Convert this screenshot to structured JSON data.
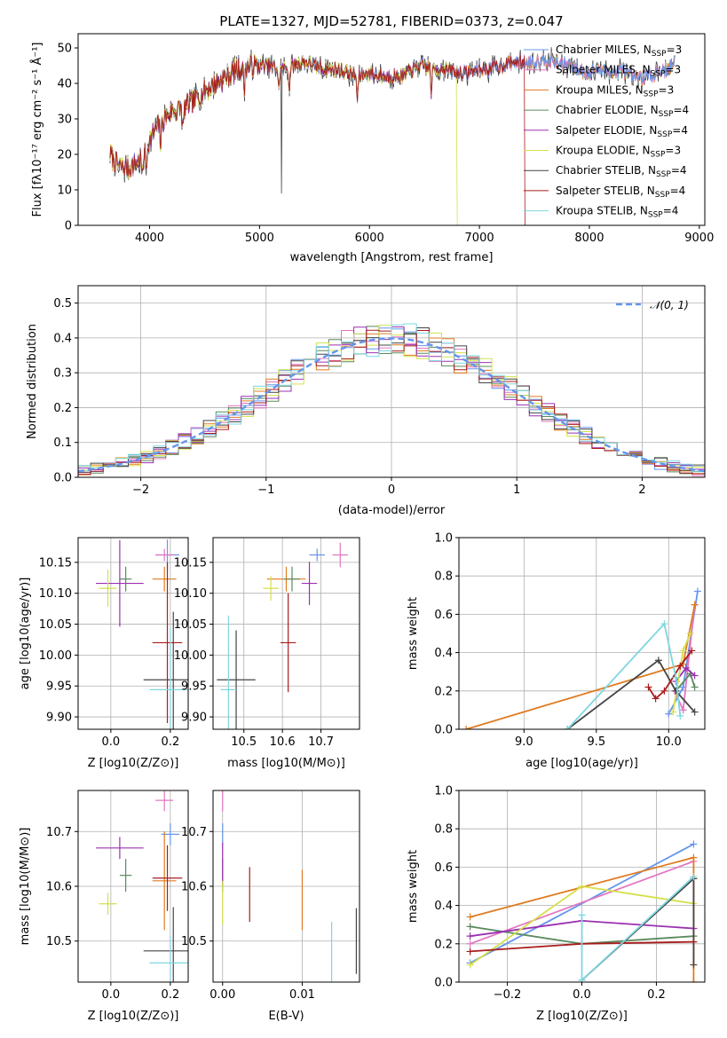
{
  "title": "PLATE=1327, MJD=52781, FIBERID=0373, z=0.047",
  "colors": {
    "Chabrier MILES": "#6495ed",
    "Salpeter MILES": "#e377c2",
    "Kroupa MILES": "#e07b20",
    "Chabrier ELODIE": "#5a8a5e",
    "Salpeter ELODIE": "#9a30b0",
    "Kroupa ELODIE": "#d4e04a",
    "Chabrier STELIB": "#444444",
    "Salpeter STELIB": "#a81c1c",
    "Kroupa STELIB": "#7fd6e0"
  },
  "chart_data": [
    {
      "id": "spectrum",
      "type": "line",
      "title": "PLATE=1327, MJD=52781, FIBERID=0373, z=0.047",
      "xlabel": "wavelength [Angstrom, rest frame]",
      "ylabel": "Flux [fλ10⁻¹⁷ erg cm⁻² s⁻¹ Å⁻¹]",
      "xlim": [
        3350,
        9050
      ],
      "ylim": [
        0,
        54
      ],
      "xticks": [
        4000,
        5000,
        6000,
        7000,
        8000,
        9000
      ],
      "yticks": [
        0,
        10,
        20,
        30,
        40,
        50
      ],
      "legend_loc": "right",
      "continuum": {
        "x": [
          3640,
          3700,
          3800,
          3900,
          4000,
          4100,
          4200,
          4300,
          4400,
          4500,
          4600,
          4700,
          4800,
          4900,
          5000,
          5100,
          5200,
          5300,
          5400,
          5500,
          5600,
          5700,
          5800,
          5900,
          6000,
          6100,
          6200,
          6300,
          6400,
          6500,
          6600,
          6700,
          6800,
          6900,
          7000,
          7100,
          7200,
          7300,
          7400,
          7500,
          7600,
          7700,
          7800,
          7900,
          8000,
          8100,
          8200,
          8300,
          8400,
          8500,
          8600,
          8700,
          8780
        ],
        "y": [
          20,
          17,
          16,
          18,
          24,
          29,
          32,
          33,
          35,
          38,
          40,
          42,
          44,
          45,
          45,
          45,
          44,
          45,
          46,
          45,
          44,
          44,
          43,
          42,
          43,
          42,
          42,
          42,
          44,
          45,
          44,
          44,
          43,
          43,
          44,
          44,
          45,
          46,
          46,
          46,
          47,
          46,
          45,
          44,
          43,
          44,
          43,
          44,
          41,
          42,
          43,
          44,
          46
        ]
      },
      "series": [
        {
          "name": "Chabrier MILES, N_SSP=3",
          "label_main": "Chabrier MILES, N",
          "label_sub": "SSP",
          "label_end": "=3"
        },
        {
          "name": "Salpeter MILES, N_SSP=3",
          "label_main": "Salpeter MILES, N",
          "label_sub": "SSP",
          "label_end": "=3"
        },
        {
          "name": "Kroupa MILES, N_SSP=3",
          "label_main": "Kroupa MILES, N",
          "label_sub": "SSP",
          "label_end": "=3"
        },
        {
          "name": "Chabrier ELODIE, N_SSP=4",
          "label_main": "Chabrier ELODIE, N",
          "label_sub": "SSP",
          "label_end": "=4"
        },
        {
          "name": "Salpeter ELODIE, N_SSP=4",
          "label_main": "Salpeter ELODIE, N",
          "label_sub": "SSP",
          "label_end": "=4"
        },
        {
          "name": "Kroupa ELODIE, N_SSP=3",
          "label_main": "Kroupa ELODIE, N",
          "label_sub": "SSP",
          "label_end": "=3"
        },
        {
          "name": "Chabrier STELIB, N_SSP=4",
          "label_main": "Chabrier STELIB, N",
          "label_sub": "SSP",
          "label_end": "=4"
        },
        {
          "name": "Salpeter STELIB, N_SSP=4",
          "label_main": "Salpeter STELIB, N",
          "label_sub": "SSP",
          "label_end": "=4"
        },
        {
          "name": "Kroupa STELIB, N_SSP=4",
          "label_main": "Kroupa STELIB, N",
          "label_sub": "SSP",
          "label_end": "=4"
        }
      ]
    },
    {
      "id": "residuals",
      "type": "line",
      "xlabel": "(data-model)/error",
      "ylabel": "Normed distribution",
      "xlim": [
        -2.5,
        2.5
      ],
      "ylim": [
        0,
        0.55
      ],
      "xticks": [
        -2,
        -1,
        0,
        1,
        2
      ],
      "yticks": [
        0.0,
        0.1,
        0.2,
        0.3,
        0.4,
        0.5
      ],
      "grid": true,
      "reference_label": "𝒩(0, 1)",
      "legend_loc": "top-right",
      "bin_width": 0.1,
      "gaussian": {
        "mean": 0,
        "sigma": 1
      }
    },
    {
      "id": "age_vs_Z",
      "type": "scatter",
      "xlabel": "Z [log10(Z/Z⊙)]",
      "ylabel": "age  [log10(age/yr)]",
      "xlim": [
        -0.11,
        0.26
      ],
      "ylim": [
        9.88,
        10.19
      ],
      "xticks": [
        0.0,
        0.2
      ],
      "yticks": [
        9.9,
        9.95,
        10.0,
        10.05,
        10.1,
        10.15
      ],
      "grid": true,
      "points": [
        {
          "model": "Chabrier MILES",
          "x": 0.19,
          "xerr": 0.04,
          "y": 10.162,
          "yerr": 0.025
        },
        {
          "model": "Salpeter MILES",
          "x": 0.18,
          "xerr": 0.03,
          "y": 10.162,
          "yerr": 0.01
        },
        {
          "model": "Kroupa MILES",
          "x": 0.18,
          "xerr": 0.04,
          "y": 10.123,
          "yerr": 0.02
        },
        {
          "model": "Chabrier ELODIE",
          "x": 0.05,
          "xerr": 0.02,
          "y": 10.123,
          "yerr": 0.02
        },
        {
          "model": "Salpeter ELODIE",
          "x": 0.03,
          "xerr": 0.08,
          "y": 10.116,
          "yerr": 0.07
        },
        {
          "model": "Kroupa ELODIE",
          "x": -0.01,
          "xerr": 0.03,
          "y": 10.108,
          "yerr": 0.03
        },
        {
          "model": "Chabrier STELIB",
          "x": 0.21,
          "xerr": 0.1,
          "y": 9.96,
          "yerr": 0.11
        },
        {
          "model": "Salpeter STELIB",
          "x": 0.19,
          "xerr": 0.05,
          "y": 10.02,
          "yerr": 0.13
        },
        {
          "model": "Kroupa STELIB",
          "x": 0.2,
          "xerr": 0.07,
          "y": 9.944,
          "yerr": 0.1
        }
      ]
    },
    {
      "id": "age_vs_mass",
      "type": "scatter",
      "xlabel": "mass [log10(M/M⊙)]",
      "xlim": [
        10.42,
        10.8
      ],
      "ylim": [
        9.88,
        10.19
      ],
      "xticks": [
        10.5,
        10.6,
        10.7
      ],
      "yticks": [
        9.9,
        9.95,
        10.0,
        10.05,
        10.1,
        10.15
      ],
      "grid": true,
      "points": [
        {
          "model": "Chabrier MILES",
          "x": 10.69,
          "xerr": 0.02,
          "y": 10.162,
          "yerr": 0.01
        },
        {
          "model": "Salpeter MILES",
          "x": 10.75,
          "xerr": 0.02,
          "y": 10.162,
          "yerr": 0.02
        },
        {
          "model": "Kroupa MILES",
          "x": 10.61,
          "xerr": 0.05,
          "y": 10.123,
          "yerr": 0.02
        },
        {
          "model": "Chabrier ELODIE",
          "x": 10.625,
          "xerr": 0.02,
          "y": 10.123,
          "yerr": 0.02
        },
        {
          "model": "Salpeter ELODIE",
          "x": 10.67,
          "xerr": 0.02,
          "y": 10.116,
          "yerr": 0.035
        },
        {
          "model": "Kroupa ELODIE",
          "x": 10.57,
          "xerr": 0.02,
          "y": 10.108,
          "yerr": 0.02
        },
        {
          "model": "Chabrier STELIB",
          "x": 10.48,
          "xerr": 0.05,
          "y": 9.96,
          "yerr": 0.08
        },
        {
          "model": "Salpeter STELIB",
          "x": 10.615,
          "xerr": 0.02,
          "y": 10.02,
          "yerr": 0.08
        },
        {
          "model": "Kroupa STELIB",
          "x": 10.46,
          "xerr": 0.02,
          "y": 9.944,
          "yerr": 0.12
        }
      ]
    },
    {
      "id": "weight_vs_age",
      "type": "line",
      "xlabel": "age  [log10(age/yr)]",
      "ylabel": "mass weight",
      "xlim": [
        8.55,
        10.25
      ],
      "ylim": [
        0,
        1
      ],
      "xticks": [
        9.0,
        9.5,
        10.0
      ],
      "yticks": [
        0.0,
        0.2,
        0.4,
        0.6,
        0.8,
        1.0
      ],
      "grid": true,
      "series": [
        {
          "model": "Chabrier MILES",
          "x": [
            10.0,
            10.1,
            10.2
          ],
          "y": [
            0.08,
            0.22,
            0.72
          ]
        },
        {
          "model": "Salpeter MILES",
          "x": [
            10.04,
            10.1,
            10.18
          ],
          "y": [
            0.2,
            0.1,
            0.65
          ]
        },
        {
          "model": "Kroupa MILES",
          "x": [
            8.6,
            10.1,
            10.18
          ],
          "y": [
            0.0,
            0.34,
            0.65
          ]
        },
        {
          "model": "Chabrier ELODIE",
          "x": [
            10.05,
            10.15,
            10.18
          ],
          "y": [
            0.2,
            0.29,
            0.22
          ]
        },
        {
          "model": "Salpeter ELODIE",
          "x": [
            10.05,
            10.12,
            10.18
          ],
          "y": [
            0.25,
            0.32,
            0.28
          ]
        },
        {
          "model": "Kroupa ELODIE",
          "x": [
            10.03,
            10.1,
            10.15
          ],
          "y": [
            0.09,
            0.41,
            0.5
          ]
        },
        {
          "model": "Chabrier STELIB",
          "x": [
            9.3,
            9.93,
            10.05,
            10.18
          ],
          "y": [
            0.0,
            0.36,
            0.2,
            0.09
          ]
        },
        {
          "model": "Salpeter STELIB",
          "x": [
            9.86,
            9.91,
            9.97,
            10.08,
            10.16
          ],
          "y": [
            0.22,
            0.16,
            0.2,
            0.33,
            0.41
          ]
        },
        {
          "model": "Kroupa STELIB",
          "x": [
            9.3,
            9.97,
            10.05,
            10.08
          ],
          "y": [
            0.0,
            0.55,
            0.27,
            0.07
          ]
        }
      ]
    },
    {
      "id": "mass_vs_Z",
      "type": "scatter",
      "xlabel": "Z [log10(Z/Z⊙)]",
      "ylabel": "mass [log10(M/M⊙)]",
      "xlim": [
        -0.11,
        0.26
      ],
      "ylim": [
        10.425,
        10.775
      ],
      "xticks": [
        0.0,
        0.2
      ],
      "yticks": [
        10.5,
        10.6,
        10.7
      ],
      "grid": true,
      "points": [
        {
          "model": "Chabrier MILES",
          "x": 0.2,
          "xerr": 0.03,
          "y": 10.695,
          "yerr": 0.02
        },
        {
          "model": "Salpeter MILES",
          "x": 0.18,
          "xerr": 0.03,
          "y": 10.757,
          "yerr": 0.02
        },
        {
          "model": "Kroupa MILES",
          "x": 0.18,
          "xerr": 0.04,
          "y": 10.61,
          "yerr": 0.09
        },
        {
          "model": "Chabrier ELODIE",
          "x": 0.05,
          "xerr": 0.02,
          "y": 10.62,
          "yerr": 0.03
        },
        {
          "model": "Salpeter ELODIE",
          "x": 0.03,
          "xerr": 0.08,
          "y": 10.67,
          "yerr": 0.02
        },
        {
          "model": "Kroupa ELODIE",
          "x": -0.01,
          "xerr": 0.03,
          "y": 10.568,
          "yerr": 0.02
        },
        {
          "model": "Chabrier STELIB",
          "x": 0.21,
          "xerr": 0.1,
          "y": 10.482,
          "yerr": 0.08
        },
        {
          "model": "Salpeter STELIB",
          "x": 0.19,
          "xerr": 0.05,
          "y": 10.615,
          "yerr": 0.06
        },
        {
          "model": "Kroupa STELIB",
          "x": 0.2,
          "xerr": 0.07,
          "y": 10.46,
          "yerr": 0.05
        }
      ]
    },
    {
      "id": "mass_vs_ebv",
      "type": "scatter",
      "xlabel": "E(B-V)",
      "xlim": [
        -0.0012,
        0.0172
      ],
      "ylim": [
        10.425,
        10.775
      ],
      "xticks": [
        0.0,
        0.01
      ],
      "yticks": [
        10.5,
        10.6,
        10.7
      ],
      "grid": true,
      "points": [
        {
          "model": "Chabrier MILES",
          "x": 0.0,
          "y": 10.695,
          "yerr": 0.02
        },
        {
          "model": "Salpeter MILES",
          "x": 0.0,
          "y": 10.757,
          "yerr": 0.02
        },
        {
          "model": "Kroupa MILES",
          "x": 0.01,
          "y": 10.575,
          "yerr": 0.055
        },
        {
          "model": "Chabrier ELODIE",
          "x": 0.0,
          "y": 10.62,
          "yerr": 0.03
        },
        {
          "model": "Salpeter ELODIE",
          "x": 0.0,
          "y": 10.64,
          "yerr": 0.04
        },
        {
          "model": "Kroupa ELODIE",
          "x": 0.0,
          "y": 10.57,
          "yerr": 0.04
        },
        {
          "model": "Chabrier STELIB",
          "x": 0.0168,
          "y": 10.5,
          "yerr": 0.06
        },
        {
          "model": "Salpeter STELIB",
          "x": 0.0034,
          "y": 10.585,
          "yerr": 0.05
        },
        {
          "model": "Kroupa STELIB",
          "x": 0.0137,
          "y": 10.465,
          "yerr": 0.07
        }
      ]
    },
    {
      "id": "weight_vs_Z",
      "type": "line",
      "xlabel": "Z [log10(Z/Z⊙)]",
      "ylabel": "mass weight",
      "xlim": [
        -0.33,
        0.33
      ],
      "ylim": [
        0,
        1
      ],
      "xticks": [
        -0.2,
        0.0,
        0.2
      ],
      "yticks": [
        0.0,
        0.2,
        0.4,
        0.6,
        0.8,
        1.0
      ],
      "grid": true,
      "series": [
        {
          "model": "Chabrier MILES",
          "x": [
            -0.3,
            0.3
          ],
          "y": [
            0.1,
            0.72
          ]
        },
        {
          "model": "Salpeter MILES",
          "x": [
            -0.3,
            0.3
          ],
          "y": [
            0.2,
            0.63
          ]
        },
        {
          "model": "Kroupa MILES",
          "x": [
            -0.3,
            0.3,
            0.3
          ],
          "y": [
            0.34,
            0.65,
            0.0
          ]
        },
        {
          "model": "Chabrier ELODIE",
          "x": [
            -0.3,
            0.0,
            0.3
          ],
          "y": [
            0.29,
            0.2,
            0.24
          ]
        },
        {
          "model": "Salpeter ELODIE",
          "x": [
            -0.3,
            0.0,
            0.3
          ],
          "y": [
            0.24,
            0.32,
            0.28
          ]
        },
        {
          "model": "Kroupa ELODIE",
          "x": [
            -0.3,
            0.0,
            0.3
          ],
          "y": [
            0.09,
            0.5,
            0.41
          ]
        },
        {
          "model": "Chabrier STELIB",
          "x": [
            0.0,
            0.3,
            0.3
          ],
          "y": [
            0.01,
            0.54,
            0.09
          ]
        },
        {
          "model": "Salpeter STELIB",
          "x": [
            -0.3,
            0.0,
            0.3
          ],
          "y": [
            0.16,
            0.2,
            0.21
          ]
        },
        {
          "model": "Kroupa STELIB",
          "x": [
            0.0,
            0.0,
            0.3
          ],
          "y": [
            0.35,
            0.01,
            0.55
          ]
        }
      ]
    }
  ]
}
